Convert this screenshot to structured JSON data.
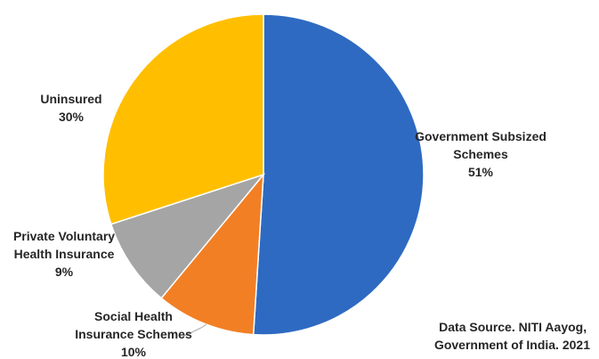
{
  "chart_data": {
    "type": "pie",
    "title": "",
    "start_angle_deg": 0,
    "direction": "clockwise",
    "slices": [
      {
        "label_lines": [
          "Government Subsized",
          "Schemes"
        ],
        "value": 51,
        "value_label": "51%",
        "color": "#2E6AC1"
      },
      {
        "label_lines": [
          "Social Health",
          "Insurance Schemes"
        ],
        "value": 10,
        "value_label": "10%",
        "color": "#F27F24"
      },
      {
        "label_lines": [
          "Private Voluntary",
          "Health Insurance"
        ],
        "value": 9,
        "value_label": "9%",
        "color": "#A5A5A5"
      },
      {
        "label_lines": [
          "Uninsured"
        ],
        "value": 30,
        "value_label": "30%",
        "color": "#FFBF00"
      }
    ],
    "slice_border_color": "#FFFFFF",
    "legend": "none"
  },
  "source_note": {
    "line1": "Data Source. NITI Aayog,",
    "line2": "Government of India. 2021"
  }
}
